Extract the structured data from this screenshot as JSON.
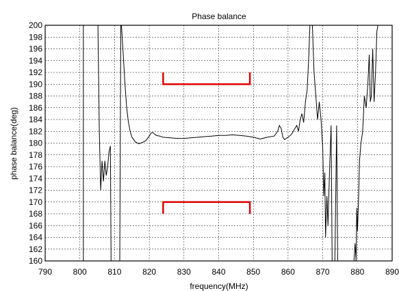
{
  "chart_data": {
    "type": "line",
    "title": "Phase balance",
    "xlabel": "frequency(MHz)",
    "ylabel": "phase balance(deg)",
    "xlim": [
      790,
      890
    ],
    "ylim": [
      160,
      200
    ],
    "x_ticks": [
      "790",
      "800",
      "810",
      "820",
      "830",
      "840",
      "850",
      "860",
      "870",
      "880",
      "890"
    ],
    "y_ticks": [
      "200",
      "198",
      "196",
      "194",
      "192",
      "190",
      "188",
      "186",
      "184",
      "182",
      "180",
      "178",
      "176",
      "174",
      "172",
      "170",
      "168",
      "166",
      "164",
      "162",
      "160"
    ],
    "grid": true,
    "legend": "none",
    "series": [
      {
        "color": "#000000",
        "segments": [
          [
            [
              801.0,
              200.0
            ],
            [
              801.0,
              160.0
            ]
          ],
          [
            [
              805.2,
              200.0
            ],
            [
              805.6,
              182.0
            ],
            [
              806.0,
              172.0
            ],
            [
              806.4,
              177.0
            ],
            [
              806.8,
              173.5
            ],
            [
              807.2,
              177.0
            ],
            [
              807.6,
              174.5
            ],
            [
              808.0,
              176.0
            ],
            [
              808.4,
              178.5
            ],
            [
              808.8,
              179.5
            ],
            [
              809.0,
              160.0
            ]
          ],
          [
            [
              811.5,
              160.0
            ],
            [
              811.8,
              200.0
            ]
          ],
          [
            [
              812.0,
              200.0
            ],
            [
              812.5,
              195.0
            ],
            [
              813.0,
              190.0
            ],
            [
              813.5,
              186.0
            ],
            [
              814.0,
              183.5
            ],
            [
              814.5,
              182.0
            ],
            [
              815.0,
              181.0
            ],
            [
              816.0,
              180.2
            ],
            [
              817.0,
              179.9
            ],
            [
              818.0,
              180.1
            ],
            [
              819.0,
              180.4
            ],
            [
              820.0,
              181.2
            ],
            [
              820.5,
              181.7
            ],
            [
              821.0,
              181.8
            ],
            [
              822.0,
              181.3
            ],
            [
              823.0,
              181.2
            ],
            [
              824.0,
              181.0
            ],
            [
              826.0,
              180.9
            ],
            [
              828.0,
              180.8
            ],
            [
              830.0,
              180.8
            ],
            [
              832.0,
              180.9
            ],
            [
              834.0,
              181.0
            ],
            [
              836.0,
              181.1
            ],
            [
              838.0,
              181.2
            ],
            [
              840.0,
              181.3
            ],
            [
              842.0,
              181.3
            ],
            [
              844.0,
              181.4
            ],
            [
              846.0,
              181.3
            ],
            [
              848.0,
              181.2
            ],
            [
              850.0,
              181.0
            ],
            [
              852.0,
              180.7
            ],
            [
              854.0,
              181.0
            ],
            [
              856.0,
              181.2
            ],
            [
              857.0,
              182.0
            ],
            [
              857.5,
              183.0
            ],
            [
              858.0,
              182.5
            ],
            [
              858.5,
              181.0
            ],
            [
              859.0,
              180.6
            ],
            [
              860.0,
              181.0
            ],
            [
              861.0,
              181.5
            ],
            [
              862.0,
              182.5
            ],
            [
              862.5,
              183.0
            ],
            [
              863.0,
              182.0
            ],
            [
              863.5,
              184.0
            ],
            [
              864.0,
              185.0
            ],
            [
              864.5,
              183.5
            ],
            [
              865.0,
              187.0
            ],
            [
              865.5,
              189.0
            ],
            [
              866.0,
              195.0
            ],
            [
              866.3,
              200.0
            ]
          ],
          [
            [
              867.0,
              200.0
            ],
            [
              867.5,
              192.0
            ],
            [
              868.0,
              188.0
            ],
            [
              868.5,
              184.0
            ],
            [
              869.0,
              187.0
            ],
            [
              869.5,
              184.0
            ],
            [
              870.0,
              179.0
            ],
            [
              870.3,
              171.0
            ],
            [
              870.6,
              175.0
            ],
            [
              870.8,
              164.0
            ],
            [
              871.0,
              168.0
            ],
            [
              871.2,
              171.0
            ],
            [
              871.5,
              166.0
            ],
            [
              872.0,
              176.0
            ],
            [
              872.4,
              183.0
            ],
            [
              872.7,
              160.0
            ]
          ],
          [
            [
              873.5,
              160.0
            ],
            [
              874.0,
              183.0
            ],
            [
              874.3,
              160.0
            ]
          ],
          [
            [
              879.0,
              160.0
            ],
            [
              879.3,
              163.0
            ],
            [
              879.6,
              160.0
            ],
            [
              879.8,
              169.0
            ],
            [
              880.0,
              165.0
            ],
            [
              880.3,
              170.0
            ],
            [
              880.6,
              177.0
            ],
            [
              881.0,
              180.0
            ],
            [
              881.5,
              182.0
            ],
            [
              882.0,
              188.0
            ],
            [
              882.5,
              186.0
            ],
            [
              883.0,
              190.0
            ],
            [
              883.4,
              195.0
            ],
            [
              883.7,
              187.0
            ],
            [
              884.0,
              188.0
            ],
            [
              884.4,
              196.0
            ],
            [
              884.8,
              187.0
            ],
            [
              885.2,
              192.0
            ],
            [
              885.6,
              199.0
            ],
            [
              885.9,
              200.0
            ]
          ]
        ]
      }
    ],
    "spec_brackets": [
      {
        "name": "upper-limit",
        "color": "#e00000",
        "x": [
          824,
          849
        ],
        "y": 190,
        "tick_to": 192
      },
      {
        "name": "lower-limit",
        "color": "#e00000",
        "x": [
          824,
          849
        ],
        "y": 170,
        "tick_to": 168
      }
    ]
  }
}
